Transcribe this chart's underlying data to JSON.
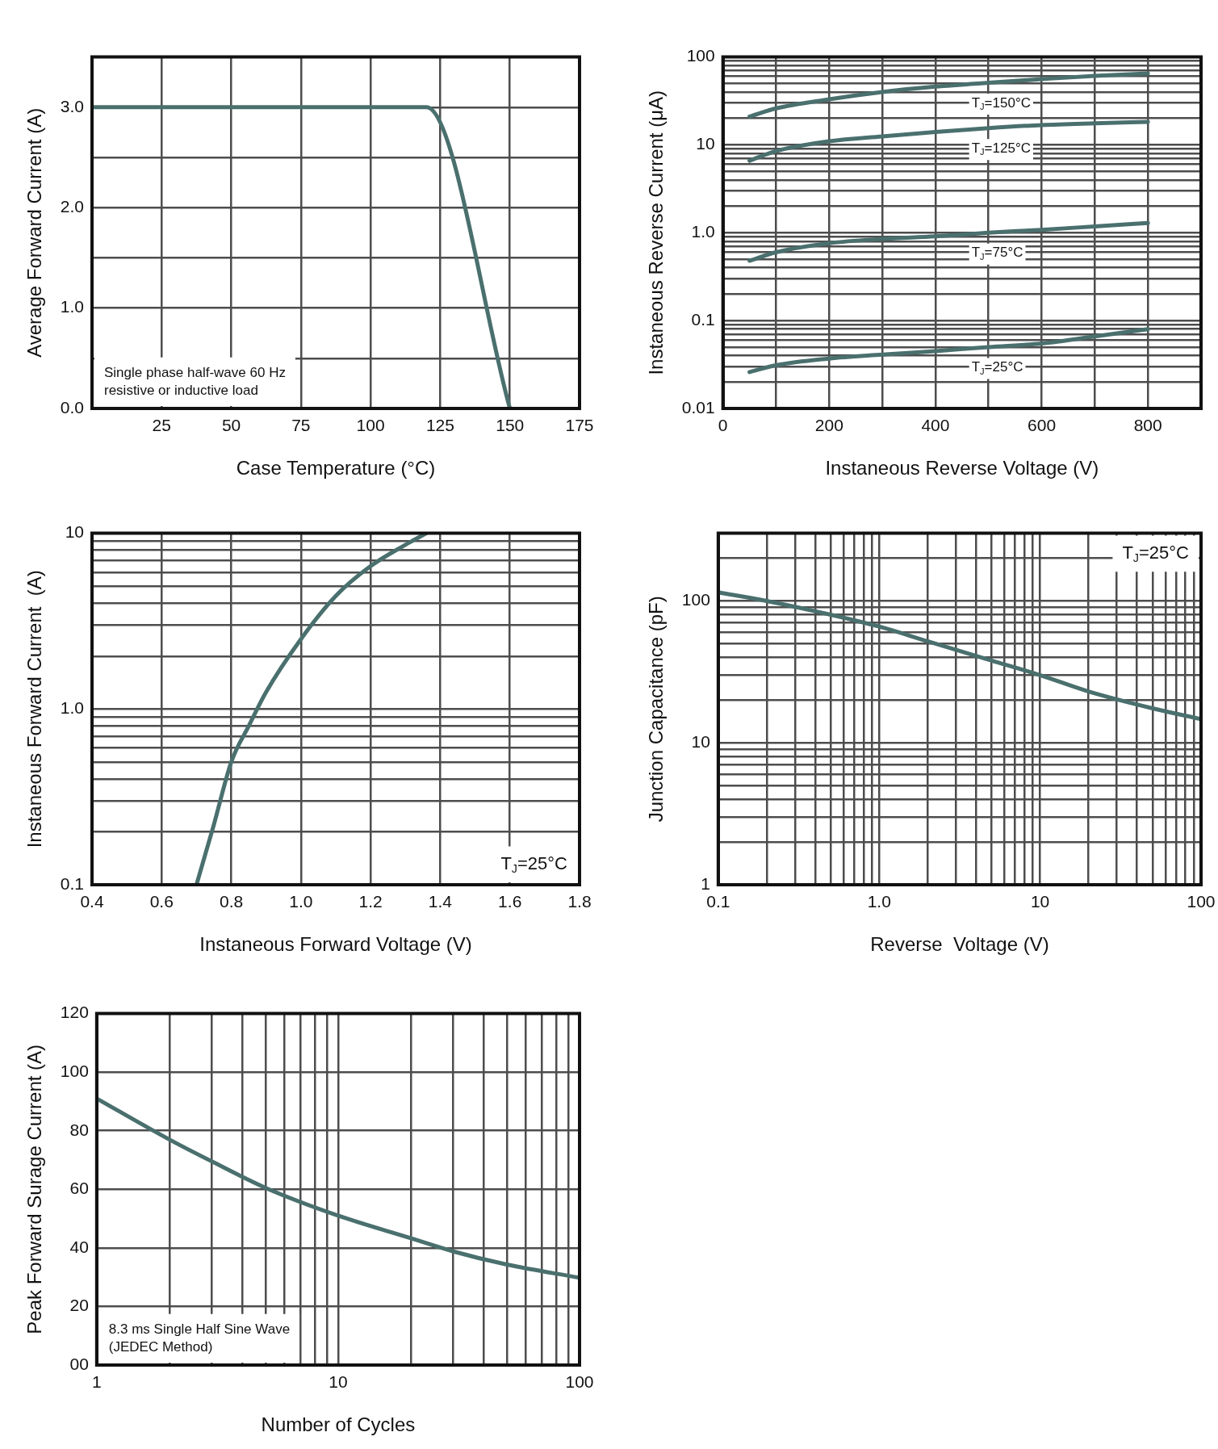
{
  "chart_data": [
    {
      "type": "line",
      "xlabel": "Case Temperature (°C)",
      "ylabel": "Average Forward Current (A)",
      "xlim": [
        0,
        175
      ],
      "xticks": [
        25,
        50,
        75,
        100,
        125,
        150,
        175
      ],
      "ylim": [
        0,
        3.5
      ],
      "yticks": [
        {
          "value": 0,
          "label": "0.0"
        },
        {
          "value": 0.5,
          "label": null
        },
        {
          "value": 1,
          "label": "1.0"
        },
        {
          "value": 1.5,
          "label": null
        },
        {
          "value": 2,
          "label": "2.0"
        },
        {
          "value": 2.5,
          "label": null
        },
        {
          "value": 3,
          "label": "3.0"
        }
      ],
      "grid": true,
      "legend": false,
      "marker": "none",
      "line_style": "solid",
      "series": [
        {
          "color": "#4a706e",
          "x": [
            0,
            120,
            150
          ],
          "values": [
            3,
            3,
            0
          ]
        }
      ],
      "annotations": [
        "Single phase half-wave 60 Hz\nresistive or inductive load"
      ]
    },
    {
      "type": "line",
      "xlabel": "Instaneous Reverse Voltage (V)",
      "ylabel": "Instaneous Reverse Current (μA)",
      "log": "y",
      "xlim": [
        0,
        900
      ],
      "xticks": [
        0,
        {
          "value": 100,
          "label": null
        },
        200,
        {
          "value": 300,
          "label": null
        },
        400,
        {
          "value": 500,
          "label": null
        },
        600,
        {
          "value": 700,
          "label": null
        },
        800
      ],
      "ylim": [
        0.01,
        100
      ],
      "yticks": [
        0.01,
        {
          "value": 0.02,
          "label": null
        },
        {
          "value": 0.03,
          "label": null
        },
        {
          "value": 0.04,
          "label": null
        },
        {
          "value": 0.05,
          "label": null
        },
        {
          "value": 0.06,
          "label": null
        },
        {
          "value": 0.07,
          "label": null
        },
        {
          "value": 0.08,
          "label": null
        },
        {
          "value": 0.09,
          "label": null
        },
        0.1,
        {
          "value": 0.2,
          "label": null
        },
        {
          "value": 0.3,
          "label": null
        },
        {
          "value": 0.4,
          "label": null
        },
        {
          "value": 0.5,
          "label": null
        },
        {
          "value": 0.6,
          "label": null
        },
        {
          "value": 0.7,
          "label": null
        },
        {
          "value": 0.8,
          "label": null
        },
        {
          "value": 0.9,
          "label": null
        },
        {
          "value": 1,
          "label": "1.0"
        },
        {
          "value": 2,
          "label": null
        },
        {
          "value": 3,
          "label": null
        },
        {
          "value": 4,
          "label": null
        },
        {
          "value": 5,
          "label": null
        },
        {
          "value": 6,
          "label": null
        },
        {
          "value": 7,
          "label": null
        },
        {
          "value": 8,
          "label": null
        },
        {
          "value": 9,
          "label": null
        },
        10,
        {
          "value": 20,
          "label": null
        },
        {
          "value": 30,
          "label": null
        },
        {
          "value": 40,
          "label": null
        },
        {
          "value": 50,
          "label": null
        },
        {
          "value": 60,
          "label": null
        },
        {
          "value": 70,
          "label": null
        },
        {
          "value": 80,
          "label": null
        },
        {
          "value": 90,
          "label": null
        },
        100
      ],
      "grid": true,
      "legend": false,
      "marker": "none",
      "line_style": "solid",
      "x": [
        50,
        100,
        200,
        300,
        400,
        500,
        600,
        700,
        800
      ],
      "series": [
        {
          "name": "T$_{J}$=150°C",
          "color": "#4a706e",
          "values": [
            21,
            26,
            33,
            40,
            46,
            51,
            56,
            61,
            65
          ]
        },
        {
          "name": "T$_{J}$=125°C",
          "color": "#4a706e",
          "values": [
            6.6,
            8.5,
            11,
            12.5,
            14,
            15.5,
            16.8,
            17.6,
            18.3
          ]
        },
        {
          "name": "T$_{J}$=75°C",
          "color": "#4a706e",
          "values": [
            0.48,
            0.6,
            0.76,
            0.85,
            0.91,
            1,
            1.08,
            1.18,
            1.29
          ]
        },
        {
          "name": "T$_{J}$=25°C",
          "color": "#4a706e",
          "values": [
            0.026,
            0.031,
            0.037,
            0.041,
            0.045,
            0.05,
            0.055,
            0.066,
            0.08
          ]
        }
      ]
    },
    {
      "type": "line",
      "xlabel": "Instaneous Forward Voltage (V)",
      "ylabel": "Instaneous Forward Current  (A)",
      "log": "y",
      "xlim": [
        0.4,
        1.8
      ],
      "xticks": [
        0.4,
        0.6,
        0.8,
        {
          "value": 1,
          "label": "1.0"
        },
        1.2,
        1.4,
        1.6,
        1.8
      ],
      "ylim": [
        0.1,
        10
      ],
      "yticks": [
        0.1,
        {
          "value": 0.2,
          "label": null
        },
        {
          "value": 0.3,
          "label": null
        },
        {
          "value": 0.4,
          "label": null
        },
        {
          "value": 0.5,
          "label": null
        },
        {
          "value": 0.6,
          "label": null
        },
        {
          "value": 0.7,
          "label": null
        },
        {
          "value": 0.8,
          "label": null
        },
        {
          "value": 0.9,
          "label": null
        },
        {
          "value": 1,
          "label": "1.0"
        },
        {
          "value": 2,
          "label": null
        },
        {
          "value": 3,
          "label": null
        },
        {
          "value": 4,
          "label": null
        },
        {
          "value": 5,
          "label": null
        },
        {
          "value": 6,
          "label": null
        },
        {
          "value": 7,
          "label": null
        },
        {
          "value": 8,
          "label": null
        },
        {
          "value": 9,
          "label": null
        },
        10
      ],
      "grid": true,
      "legend": false,
      "marker": "none",
      "line_style": "solid",
      "series": [
        {
          "color": "#4a706e",
          "x": [
            0.7,
            0.75,
            0.8,
            0.85,
            0.9,
            1.0,
            1.1,
            1.2,
            1.3,
            1.36
          ],
          "values": [
            0.1,
            0.22,
            0.5,
            0.8,
            1.25,
            2.5,
            4.4,
            6.5,
            8.6,
            10
          ]
        }
      ],
      "annotations": [
        "T$_{J}$=25°C"
      ]
    },
    {
      "type": "line",
      "xlabel": "Reverse  Voltage (V)",
      "ylabel": "Junction Capacitance (pF)",
      "log": "xy",
      "xlim": [
        0.1,
        100
      ],
      "xticks": [
        0.1,
        {
          "value": 0.2,
          "label": null
        },
        {
          "value": 0.3,
          "label": null
        },
        {
          "value": 0.4,
          "label": null
        },
        {
          "value": 0.5,
          "label": null
        },
        {
          "value": 0.6,
          "label": null
        },
        {
          "value": 0.7,
          "label": null
        },
        {
          "value": 0.8,
          "label": null
        },
        {
          "value": 0.9,
          "label": null
        },
        {
          "value": 1,
          "label": "1.0"
        },
        {
          "value": 2,
          "label": null
        },
        {
          "value": 3,
          "label": null
        },
        {
          "value": 4,
          "label": null
        },
        {
          "value": 5,
          "label": null
        },
        {
          "value": 6,
          "label": null
        },
        {
          "value": 7,
          "label": null
        },
        {
          "value": 8,
          "label": null
        },
        {
          "value": 9,
          "label": null
        },
        10,
        {
          "value": 20,
          "label": null
        },
        {
          "value": 30,
          "label": null
        },
        {
          "value": 40,
          "label": null
        },
        {
          "value": 50,
          "label": null
        },
        {
          "value": 60,
          "label": null
        },
        {
          "value": 70,
          "label": null
        },
        {
          "value": 80,
          "label": null
        },
        {
          "value": 90,
          "label": null
        },
        100
      ],
      "ylim": [
        1,
        300
      ],
      "yticks": [
        1,
        {
          "value": 2,
          "label": null
        },
        {
          "value": 3,
          "label": null
        },
        {
          "value": 4,
          "label": null
        },
        {
          "value": 5,
          "label": null
        },
        {
          "value": 6,
          "label": null
        },
        {
          "value": 7,
          "label": null
        },
        {
          "value": 8,
          "label": null
        },
        {
          "value": 9,
          "label": null
        },
        10,
        {
          "value": 20,
          "label": null
        },
        {
          "value": 30,
          "label": null
        },
        {
          "value": 40,
          "label": null
        },
        {
          "value": 50,
          "label": null
        },
        {
          "value": 60,
          "label": null
        },
        {
          "value": 70,
          "label": null
        },
        {
          "value": 80,
          "label": null
        },
        {
          "value": 90,
          "label": null
        },
        100,
        {
          "value": 200,
          "label": null
        }
      ],
      "grid": true,
      "legend": false,
      "marker": "none",
      "line_style": "solid",
      "series": [
        {
          "color": "#4a706e",
          "x": [
            0.1,
            0.2,
            0.5,
            1,
            2,
            5,
            10,
            20,
            50,
            100
          ],
          "values": [
            115,
            100,
            80,
            66,
            52,
            38,
            30,
            23,
            17.5,
            14.7
          ]
        }
      ],
      "annotations": [
        "T$_{J}$=25°C"
      ]
    },
    {
      "type": "line",
      "xlabel": "Number of Cycles",
      "ylabel": "Peak Forward Surage Current (A)",
      "log": "x",
      "xlim": [
        1,
        100
      ],
      "xticks": [
        1,
        {
          "value": 2,
          "label": null
        },
        {
          "value": 3,
          "label": null
        },
        {
          "value": 4,
          "label": null
        },
        {
          "value": 5,
          "label": null
        },
        {
          "value": 6,
          "label": null
        },
        {
          "value": 7,
          "label": null
        },
        {
          "value": 8,
          "label": null
        },
        {
          "value": 9,
          "label": null
        },
        10,
        {
          "value": 20,
          "label": null
        },
        {
          "value": 30,
          "label": null
        },
        {
          "value": 40,
          "label": null
        },
        {
          "value": 50,
          "label": null
        },
        {
          "value": 60,
          "label": null
        },
        {
          "value": 70,
          "label": null
        },
        {
          "value": 80,
          "label": null
        },
        {
          "value": 90,
          "label": null
        },
        100
      ],
      "ylim": [
        0,
        120
      ],
      "yticks": [
        {
          "value": 0,
          "label": "00"
        },
        20,
        40,
        60,
        80,
        100,
        120
      ],
      "grid": true,
      "legend": false,
      "marker": "none",
      "line_style": "solid",
      "series": [
        {
          "color": "#4a706e",
          "x": [
            1,
            2,
            3,
            5,
            10,
            20,
            30,
            50,
            100
          ],
          "values": [
            91,
            77,
            69.5,
            60.5,
            51,
            43.3,
            38.8,
            34.3,
            29.8
          ]
        }
      ],
      "annotations": [
        "8.3 ms Single Half Sine Wave\n(JEDEC Method)"
      ]
    }
  ]
}
